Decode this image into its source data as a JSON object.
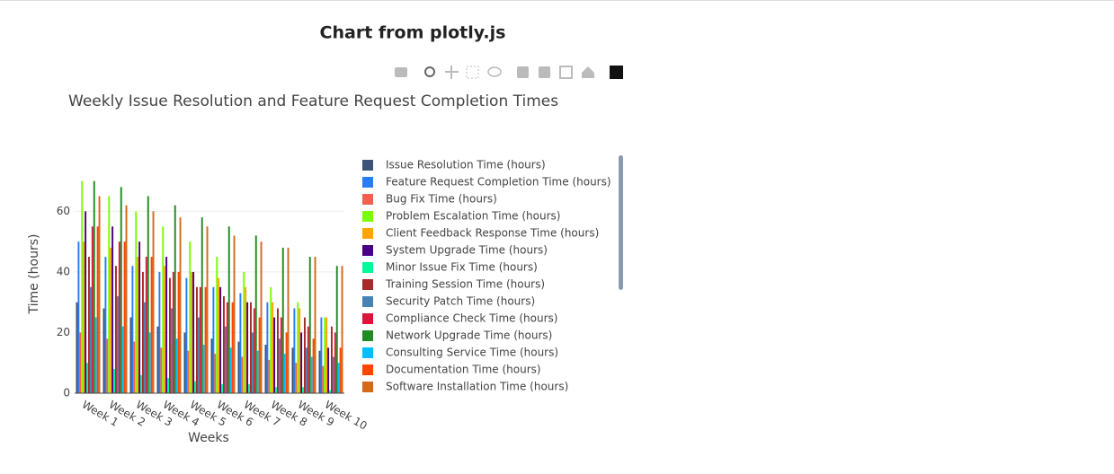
{
  "page_title": "Chart from plotly.js",
  "chart_data": {
    "type": "bar",
    "title": "Weekly Issue Resolution and Feature Request Completion Times",
    "x_label": "Weeks",
    "y_label": "Time (hours)",
    "categories": [
      "Week 1",
      "Week 2",
      "Week 3",
      "Week 4",
      "Week 5",
      "Week 6",
      "Week 7",
      "Week 8",
      "Week 9",
      "Week 10"
    ],
    "ylim": [
      0,
      77
    ],
    "yticks": [
      0,
      20,
      40,
      60
    ],
    "grid": true,
    "series": [
      {
        "name": "Issue Resolution Time (hours)",
        "color": "#3d5478",
        "values": [
          30,
          28,
          25,
          22,
          20,
          18,
          17,
          16,
          15,
          14
        ]
      },
      {
        "name": "Feature Request Completion Time (hours)",
        "color": "#2a7bf4",
        "values": [
          50,
          45,
          42,
          40,
          38,
          35,
          33,
          30,
          28,
          25
        ]
      },
      {
        "name": "Bug Fix Time (hours)",
        "color": "#f0624d",
        "values": [
          20,
          18,
          17,
          15,
          14,
          13,
          12,
          11,
          10,
          9
        ]
      },
      {
        "name": "Problem Escalation Time (hours)",
        "color": "#7cfc00",
        "values": [
          70,
          65,
          60,
          55,
          50,
          45,
          40,
          35,
          30,
          25
        ]
      },
      {
        "name": "Client Feedback Response Time (hours)",
        "color": "#ffa500",
        "values": [
          50,
          48,
          45,
          42,
          40,
          38,
          35,
          30,
          28,
          25
        ]
      },
      {
        "name": "System Upgrade Time (hours)",
        "color": "#4b0082",
        "values": [
          60,
          55,
          50,
          45,
          40,
          35,
          30,
          25,
          20,
          15
        ]
      },
      {
        "name": "Minor Issue Fix Time (hours)",
        "color": "#00fa9a",
        "values": [
          10,
          8,
          6,
          5,
          4,
          3,
          3,
          2,
          2,
          1
        ]
      },
      {
        "name": "Training Session Time (hours)",
        "color": "#a52a2a",
        "values": [
          45,
          42,
          40,
          38,
          35,
          32,
          30,
          28,
          25,
          22
        ]
      },
      {
        "name": "Security Patch Time (hours)",
        "color": "#4682b4",
        "values": [
          35,
          32,
          30,
          28,
          25,
          22,
          20,
          18,
          15,
          12
        ]
      },
      {
        "name": "Compliance Check Time (hours)",
        "color": "#dc143c",
        "values": [
          55,
          50,
          45,
          40,
          35,
          30,
          28,
          25,
          22,
          20
        ]
      },
      {
        "name": "Network Upgrade Time (hours)",
        "color": "#228b22",
        "values": [
          70,
          68,
          65,
          62,
          58,
          55,
          52,
          48,
          45,
          42
        ]
      },
      {
        "name": "Consulting Service Time (hours)",
        "color": "#00bfff",
        "values": [
          25,
          22,
          20,
          18,
          16,
          15,
          14,
          13,
          12,
          10
        ]
      },
      {
        "name": "Documentation Time (hours)",
        "color": "#ff4500",
        "values": [
          55,
          50,
          45,
          40,
          35,
          30,
          25,
          20,
          18,
          15
        ]
      },
      {
        "name": "Software Installation Time (hours)",
        "color": "#d2691e",
        "values": [
          65,
          62,
          60,
          58,
          55,
          52,
          50,
          48,
          45,
          42
        ]
      }
    ]
  }
}
